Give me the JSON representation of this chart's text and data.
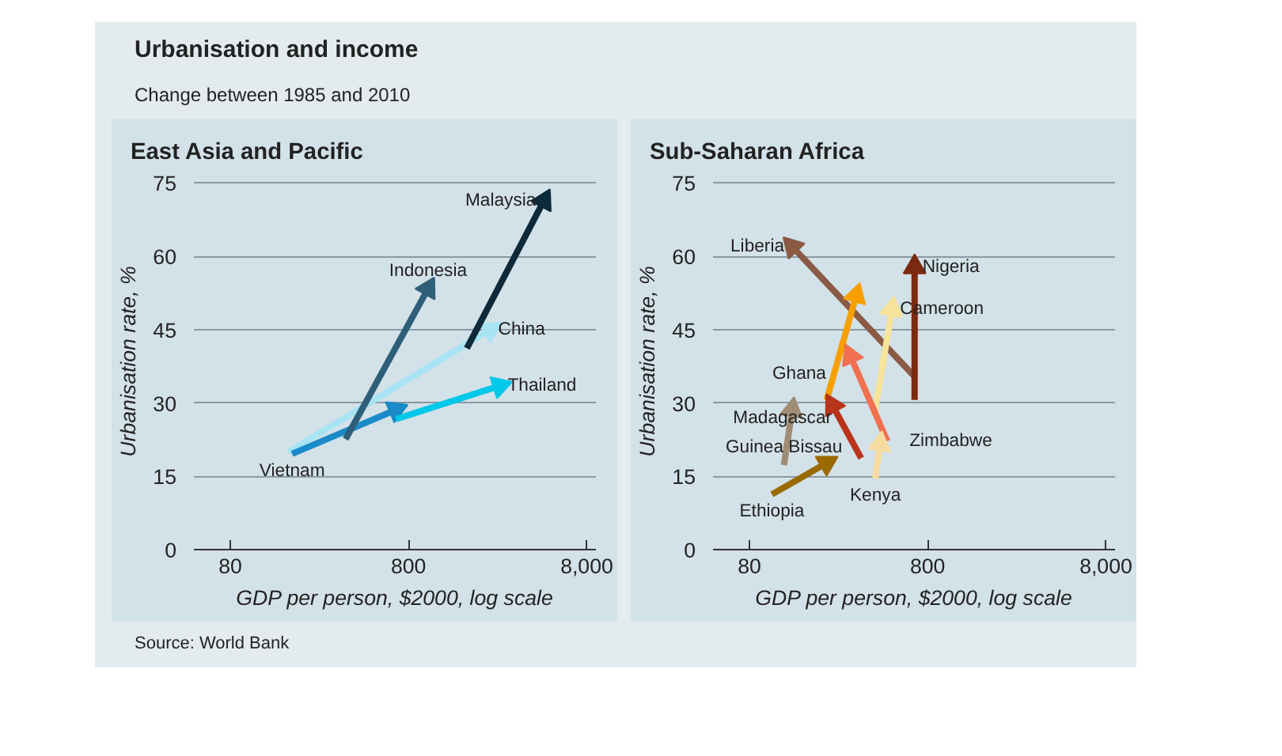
{
  "chart_data": [
    {
      "type": "line",
      "title": "East Asia and Pacific",
      "xlabel": "GDP per person, $2000, log scale",
      "ylabel": "Urbanisation rate, %",
      "annotations": [
        "Urbanisation and income",
        "Change between 1985 and 2010",
        "Source: World Bank"
      ],
      "log": "x",
      "grid": "y",
      "marker": "triangle",
      "line_style": "solid",
      "xlim": [
        50,
        9000
      ],
      "xticks": [
        80,
        800,
        {
          "value": 8000,
          "label": "8,000"
        }
      ],
      "ylim": [
        0,
        77
      ],
      "yticks": [
        0,
        15,
        30,
        45,
        60,
        75
      ],
      "series": [
        {
          "name": "China",
          "color": "#a8e4f4",
          "x": [
            170,
            2300
          ],
          "values": [
            20,
            45
          ]
        },
        {
          "name": "Vietnam",
          "color": "#1a8ac8",
          "x": [
            178,
            680
          ],
          "values": [
            19.6,
            28.6
          ]
        },
        {
          "name": "Thailand",
          "color": "#00c8e8",
          "x": [
            680,
            2600
          ],
          "values": [
            26.7,
            33.5
          ]
        },
        {
          "name": "Indonesia",
          "color": "#2f5f78",
          "x": [
            355,
            1030
          ],
          "values": [
            22.6,
            53.4
          ]
        },
        {
          "name": "Malaysia",
          "color": "#0d2a3a",
          "x": [
            1700,
            4600
          ],
          "values": [
            41.2,
            71.4
          ]
        }
      ]
    },
    {
      "type": "line",
      "title": "Sub-Saharan Africa",
      "xlabel": "GDP per person, $2000, log scale",
      "ylabel": "Urbanisation rate, %",
      "log": "x",
      "grid": "y",
      "marker": "triangle",
      "line_style": "solid",
      "xlim": [
        50,
        9000
      ],
      "xticks": [
        80,
        800,
        {
          "value": 8000,
          "label": "8,000"
        }
      ],
      "ylim": [
        0,
        77
      ],
      "yticks": [
        0,
        15,
        30,
        45,
        60,
        75
      ],
      "series": [
        {
          "name": "Liberia",
          "color": "#8a5a44",
          "x": [
            676,
            139
          ],
          "values": [
            35.4,
            62
          ]
        },
        {
          "name": "Nigeria",
          "color": "#7b2a10",
          "x": [
            676,
            676
          ],
          "values": [
            30.6,
            57.8
          ]
        },
        {
          "name": "Ghana",
          "color": "#f5a000",
          "x": [
            217,
            318
          ],
          "values": [
            30.6,
            52
          ]
        },
        {
          "name": "Cameroon",
          "color": "#f6e49a",
          "x": [
            401,
            505
          ],
          "values": [
            27.4,
            49.2
          ]
        },
        {
          "name": "Madagascar",
          "color": "#b8341b",
          "x": [
            339,
            234
          ],
          "values": [
            18.7,
            29.5
          ]
        },
        {
          "name": "Zimbabwe",
          "color": "#f07050",
          "x": [
            475,
            295
          ],
          "values": [
            22.2,
            39.6
          ]
        },
        {
          "name": "Kenya",
          "color": "#f6dca0",
          "x": [
            407,
            433
          ],
          "values": [
            14.5,
            21.6
          ]
        },
        {
          "name": "Guinea Bissau",
          "color": "#a08b75",
          "x": [
            125,
            139
          ],
          "values": [
            17.3,
            28.6
          ]
        },
        {
          "name": "Ethiopia",
          "color": "#9a6a00",
          "x": [
            107,
            217
          ],
          "values": [
            11.3,
            17.7
          ]
        }
      ]
    }
  ]
}
